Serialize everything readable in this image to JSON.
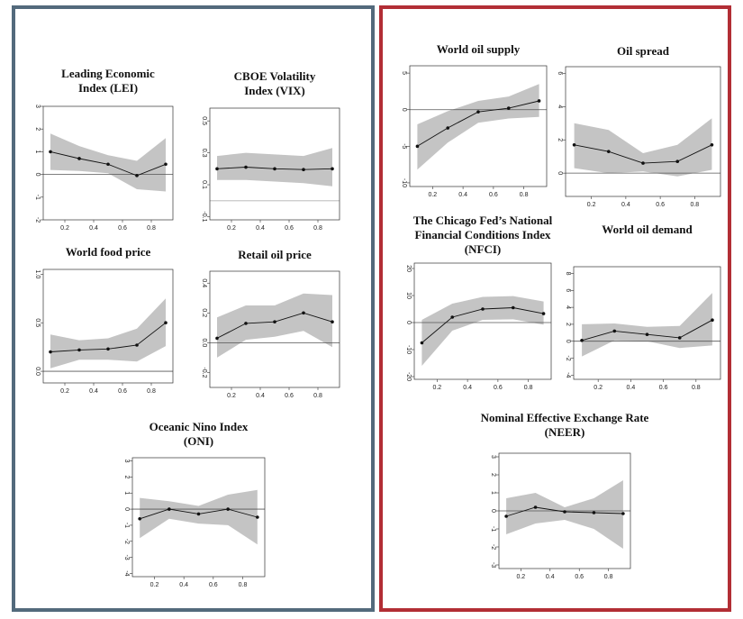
{
  "panels": [
    {
      "name": "left-panel",
      "border_color": "#536a7c"
    },
    {
      "name": "right-panel",
      "border_color": "#b22e35"
    }
  ],
  "colors": {
    "band": "#c4c4c4",
    "line": "#111111",
    "zero": "#555555",
    "zero_light": "#c8c8c8"
  },
  "chart_data": [
    {
      "type": "line",
      "title_lines": [
        "Leading Economic",
        "Index (LEI)"
      ],
      "x": [
        0.1,
        0.3,
        0.5,
        0.7,
        0.9
      ],
      "series": [
        {
          "values": [
            1.0,
            0.7,
            0.45,
            -0.05,
            0.45
          ]
        }
      ],
      "band_upper": [
        1.8,
        1.25,
        0.85,
        0.6,
        1.6
      ],
      "band_lower": [
        0.2,
        0.15,
        0.05,
        -0.65,
        -0.75
      ],
      "xlim": [
        0.05,
        0.95
      ],
      "ylim": [
        -2,
        3
      ],
      "xticks": [
        0.2,
        0.4,
        0.6,
        0.8
      ],
      "xtick_labels": [
        "0.2",
        "0.4",
        "0.6",
        "0.8"
      ],
      "yticks": [
        -2,
        -1,
        0,
        1,
        2,
        3
      ],
      "ytick_labels": [
        "-2",
        "-1",
        "0",
        "1",
        "2",
        "3"
      ],
      "zero_line": 0,
      "zero_style": "dark"
    },
    {
      "type": "line",
      "title_lines": [
        "CBOE Volatility",
        "Index (VIX)"
      ],
      "x": [
        0.1,
        0.3,
        0.5,
        0.7,
        0.9
      ],
      "series": [
        {
          "values": [
            0.2,
            0.21,
            0.2,
            0.195,
            0.2
          ]
        }
      ],
      "band_upper": [
        0.28,
        0.3,
        0.29,
        0.28,
        0.33
      ],
      "band_lower": [
        0.13,
        0.13,
        0.12,
        0.11,
        0.09
      ],
      "xlim": [
        0.05,
        0.95
      ],
      "ylim": [
        -0.12,
        0.58
      ],
      "xticks": [
        0.2,
        0.4,
        0.6,
        0.8
      ],
      "xtick_labels": [
        "0.2",
        "0.4",
        "0.6",
        "0.8"
      ],
      "yticks": [
        -0.1,
        0.1,
        0.3,
        0.5
      ],
      "ytick_labels": [
        "-0.1",
        "0.1",
        "0.3",
        "0.5"
      ],
      "zero_line": 0,
      "zero_style": "light"
    },
    {
      "type": "line",
      "title_lines": [
        "World food price"
      ],
      "x": [
        0.1,
        0.3,
        0.5,
        0.7,
        0.9
      ],
      "series": [
        {
          "values": [
            0.2,
            0.22,
            0.23,
            0.27,
            0.5
          ]
        }
      ],
      "band_upper": [
        0.38,
        0.32,
        0.34,
        0.44,
        0.75
      ],
      "band_lower": [
        0.03,
        0.12,
        0.12,
        0.1,
        0.26
      ],
      "xlim": [
        0.05,
        0.95
      ],
      "ylim": [
        -0.12,
        1.05
      ],
      "xticks": [
        0.2,
        0.4,
        0.6,
        0.8
      ],
      "xtick_labels": [
        "0.2",
        "0.4",
        "0.6",
        "0.8"
      ],
      "yticks": [
        0,
        0.5,
        1.0
      ],
      "ytick_labels": [
        "0.0",
        "0.5",
        "1.0"
      ],
      "zero_line": 0,
      "zero_style": "dark"
    },
    {
      "type": "line",
      "title_lines": [
        "Retail oil price"
      ],
      "x": [
        0.1,
        0.3,
        0.5,
        0.7,
        0.9
      ],
      "series": [
        {
          "values": [
            0.03,
            0.13,
            0.14,
            0.2,
            0.14
          ]
        }
      ],
      "band_upper": [
        0.17,
        0.25,
        0.25,
        0.33,
        0.32
      ],
      "band_lower": [
        -0.1,
        0.02,
        0.04,
        0.08,
        -0.03
      ],
      "xlim": [
        0.05,
        0.95
      ],
      "ylim": [
        -0.3,
        0.48
      ],
      "xticks": [
        0.2,
        0.4,
        0.6,
        0.8
      ],
      "xtick_labels": [
        "0.2",
        "0.4",
        "0.6",
        "0.8"
      ],
      "yticks": [
        -0.2,
        0.0,
        0.2,
        0.4
      ],
      "ytick_labels": [
        "-0.2",
        "0.0",
        "0.2",
        "0.4"
      ],
      "zero_line": 0,
      "zero_style": "dark"
    },
    {
      "type": "line",
      "title_lines": [
        "Oceanic Nino Index",
        "(ONI)"
      ],
      "x": [
        0.1,
        0.3,
        0.5,
        0.7,
        0.9
      ],
      "series": [
        {
          "values": [
            -0.6,
            0.0,
            -0.3,
            0.0,
            -0.5
          ]
        }
      ],
      "band_upper": [
        0.7,
        0.5,
        0.2,
        0.9,
        1.2
      ],
      "band_lower": [
        -1.8,
        -0.6,
        -0.9,
        -1.0,
        -2.2
      ],
      "xlim": [
        0.05,
        0.95
      ],
      "ylim": [
        -4.2,
        3.2
      ],
      "xticks": [
        0.2,
        0.4,
        0.6,
        0.8
      ],
      "xtick_labels": [
        "0.2",
        "0.4",
        "0.6",
        "0.8"
      ],
      "yticks": [
        -4,
        -3,
        -2,
        -1,
        0,
        1,
        2,
        3
      ],
      "ytick_labels": [
        "-4",
        "-3",
        "-2",
        "-1",
        "0",
        "1",
        "2",
        "3"
      ],
      "zero_line": 0,
      "zero_style": "dark"
    },
    {
      "type": "line",
      "title_lines": [
        "World oil supply"
      ],
      "x": [
        0.1,
        0.3,
        0.5,
        0.7,
        0.9
      ],
      "series": [
        {
          "values": [
            -5.0,
            -2.5,
            -0.3,
            0.2,
            1.2
          ]
        }
      ],
      "band_upper": [
        -2.0,
        -0.2,
        1.2,
        1.8,
        3.5
      ],
      "band_lower": [
        -8.2,
        -4.5,
        -1.8,
        -1.2,
        -1.0
      ],
      "xlim": [
        0.05,
        0.95
      ],
      "ylim": [
        -10.5,
        6.0
      ],
      "xticks": [
        0.2,
        0.4,
        0.6,
        0.8
      ],
      "xtick_labels": [
        "0.2",
        "0.4",
        "0.6",
        "0.8"
      ],
      "yticks": [
        -10,
        -5,
        0,
        5
      ],
      "ytick_labels": [
        "-10",
        "-5",
        "0",
        "5"
      ],
      "zero_line": 0,
      "zero_style": "dark"
    },
    {
      "type": "line",
      "title_lines": [
        "Oil spread"
      ],
      "x": [
        0.1,
        0.3,
        0.5,
        0.7,
        0.9
      ],
      "series": [
        {
          "values": [
            1.7,
            1.3,
            0.6,
            0.7,
            1.7
          ]
        }
      ],
      "band_upper": [
        3.0,
        2.6,
        1.2,
        1.7,
        3.3
      ],
      "band_lower": [
        0.3,
        0.0,
        0.1,
        -0.2,
        0.2
      ],
      "xlim": [
        0.05,
        0.95
      ],
      "ylim": [
        -1.4,
        6.4
      ],
      "xticks": [
        0.2,
        0.4,
        0.6,
        0.8
      ],
      "xtick_labels": [
        "0.2",
        "0.4",
        "0.6",
        "0.8"
      ],
      "yticks": [
        0,
        2,
        4,
        6
      ],
      "ytick_labels": [
        "0",
        "2",
        "4",
        "6"
      ],
      "zero_line": 0,
      "zero_style": "dark"
    },
    {
      "type": "line",
      "title_lines": [
        "The Chicago Fed’s National",
        "Financial Conditions Index",
        "(NFCI)"
      ],
      "x": [
        0.1,
        0.3,
        0.5,
        0.7,
        0.9
      ],
      "series": [
        {
          "values": [
            -7.5,
            2.0,
            5.0,
            5.5,
            3.3
          ]
        }
      ],
      "band_upper": [
        1.0,
        7.0,
        9.5,
        9.8,
        7.8
      ],
      "band_lower": [
        -16.0,
        -3.0,
        1.0,
        1.2,
        -0.8
      ],
      "xlim": [
        0.05,
        0.95
      ],
      "ylim": [
        -21.0,
        22.0
      ],
      "xticks": [
        0.2,
        0.4,
        0.6,
        0.8
      ],
      "xtick_labels": [
        "0.2",
        "0.4",
        "0.6",
        "0.8"
      ],
      "yticks": [
        -20,
        -10,
        0,
        10,
        20
      ],
      "ytick_labels": [
        "-20",
        "-10",
        "0",
        "10",
        "20"
      ],
      "zero_line": 0,
      "zero_style": "dark"
    },
    {
      "type": "line",
      "title_lines": [
        "World oil demand"
      ],
      "x": [
        0.1,
        0.3,
        0.5,
        0.7,
        0.9
      ],
      "series": [
        {
          "values": [
            0.1,
            1.2,
            0.8,
            0.4,
            2.5
          ]
        }
      ],
      "band_upper": [
        2.0,
        2.1,
        1.7,
        1.8,
        5.7
      ],
      "band_lower": [
        -1.8,
        0.1,
        0.0,
        -0.8,
        -0.5
      ],
      "xlim": [
        0.05,
        0.95
      ],
      "ylim": [
        -4.5,
        8.8
      ],
      "xticks": [
        0.2,
        0.4,
        0.6,
        0.8
      ],
      "xtick_labels": [
        "0.2",
        "0.4",
        "0.6",
        "0.8"
      ],
      "yticks": [
        -4,
        -2,
        0,
        2,
        4,
        6,
        8
      ],
      "ytick_labels": [
        "-4",
        "-2",
        "0",
        "2",
        "4",
        "6",
        "8"
      ],
      "zero_line": 0,
      "zero_style": "dark"
    },
    {
      "type": "line",
      "title_lines": [
        "Nominal Effective Exchange Rate",
        "(NEER)"
      ],
      "x": [
        0.1,
        0.3,
        0.5,
        0.7,
        0.9
      ],
      "series": [
        {
          "values": [
            -0.3,
            0.2,
            -0.05,
            -0.1,
            -0.15
          ]
        }
      ],
      "band_upper": [
        0.7,
        1.0,
        0.2,
        0.7,
        1.7
      ],
      "band_lower": [
        -1.3,
        -0.7,
        -0.5,
        -1.0,
        -2.1
      ],
      "xlim": [
        0.05,
        0.95
      ],
      "ylim": [
        -3.2,
        3.2
      ],
      "xticks": [
        0.2,
        0.4,
        0.6,
        0.8
      ],
      "xtick_labels": [
        "0.2",
        "0.4",
        "0.6",
        "0.8"
      ],
      "yticks": [
        -3,
        -2,
        -1,
        0,
        1,
        2,
        3
      ],
      "ytick_labels": [
        "-3",
        "-2",
        "-1",
        "0",
        "1",
        "2",
        "3"
      ],
      "zero_line": 0,
      "zero_style": "dark"
    }
  ]
}
